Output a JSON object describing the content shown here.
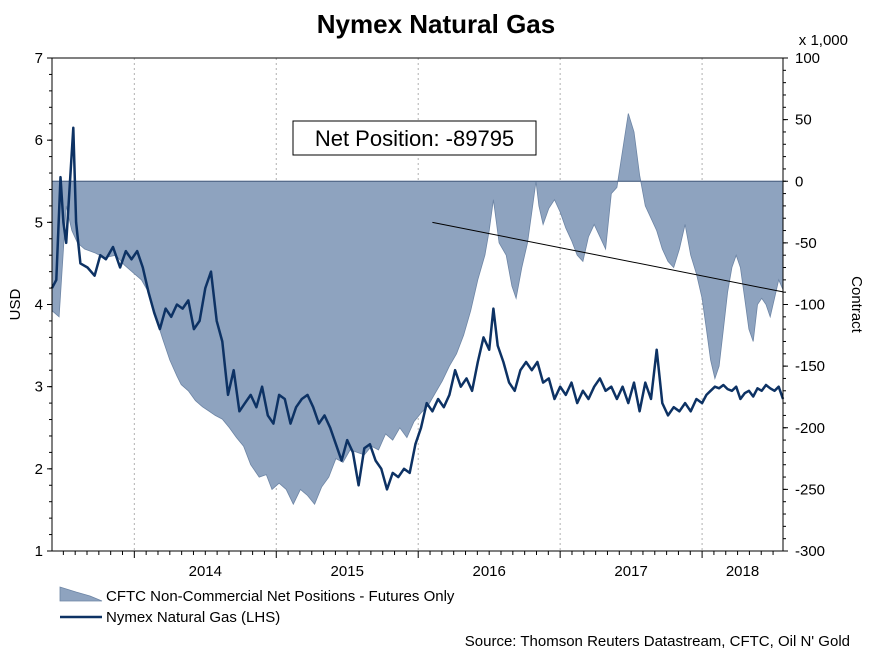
{
  "chart_data": {
    "type": "line+area",
    "title": "Nymex Natural Gas",
    "left_axis": {
      "label": "USD",
      "range": [
        1,
        7
      ],
      "ticks": [
        "1",
        "2",
        "3",
        "4",
        "5",
        "6",
        "7"
      ]
    },
    "right_axis": {
      "label": "Contract",
      "multiplier_label": "x 1,000",
      "range": [
        -300,
        100
      ],
      "ticks": [
        "100",
        "50",
        "0",
        "-50",
        "-100",
        "-150",
        "-200",
        "-250",
        "-300"
      ]
    },
    "x_axis": {
      "range": [
        2013.42,
        2018.57
      ],
      "tick_labels": [
        {
          "label": "2014",
          "year": 2014
        },
        {
          "label": "2015",
          "year": 2015
        },
        {
          "label": "2016",
          "year": 2016
        },
        {
          "label": "2017",
          "year": 2017
        },
        {
          "label": "2018",
          "year": 2018
        }
      ],
      "grid_years": [
        2014,
        2015,
        2016,
        2017,
        2018
      ]
    },
    "grid": true,
    "series": [
      {
        "name": "CFTC Non-Commercial Net Positions - Futures Only",
        "axis": "right",
        "kind": "area",
        "color": "#8EA3BF",
        "edge_color": "#6D85A5",
        "points": [
          [
            2013.42,
            -105
          ],
          [
            2013.47,
            -110
          ],
          [
            2013.52,
            -20
          ],
          [
            2013.56,
            -40
          ],
          [
            2013.6,
            -50
          ],
          [
            2013.65,
            -55
          ],
          [
            2013.72,
            -58
          ],
          [
            2013.79,
            -62
          ],
          [
            2013.87,
            -60
          ],
          [
            2013.93,
            -68
          ],
          [
            2014.0,
            -75
          ],
          [
            2014.05,
            -80
          ],
          [
            2014.1,
            -90
          ],
          [
            2014.15,
            -110
          ],
          [
            2014.2,
            -128
          ],
          [
            2014.25,
            -145
          ],
          [
            2014.3,
            -158
          ],
          [
            2014.33,
            -165
          ],
          [
            2014.38,
            -170
          ],
          [
            2014.43,
            -178
          ],
          [
            2014.48,
            -183
          ],
          [
            2014.52,
            -186
          ],
          [
            2014.57,
            -190
          ],
          [
            2014.62,
            -193
          ],
          [
            2014.67,
            -200
          ],
          [
            2014.72,
            -208
          ],
          [
            2014.77,
            -215
          ],
          [
            2014.82,
            -230
          ],
          [
            2014.88,
            -240
          ],
          [
            2014.93,
            -238
          ],
          [
            2014.97,
            -250
          ],
          [
            2015.02,
            -245
          ],
          [
            2015.07,
            -250
          ],
          [
            2015.12,
            -262
          ],
          [
            2015.17,
            -250
          ],
          [
            2015.22,
            -255
          ],
          [
            2015.27,
            -262
          ],
          [
            2015.32,
            -248
          ],
          [
            2015.37,
            -240
          ],
          [
            2015.42,
            -225
          ],
          [
            2015.47,
            -228
          ],
          [
            2015.52,
            -218
          ],
          [
            2015.57,
            -220
          ],
          [
            2015.62,
            -222
          ],
          [
            2015.67,
            -215
          ],
          [
            2015.72,
            -218
          ],
          [
            2015.77,
            -205
          ],
          [
            2015.82,
            -210
          ],
          [
            2015.87,
            -200
          ],
          [
            2015.92,
            -208
          ],
          [
            2015.97,
            -195
          ],
          [
            2016.02,
            -188
          ],
          [
            2016.07,
            -182
          ],
          [
            2016.12,
            -172
          ],
          [
            2016.17,
            -162
          ],
          [
            2016.22,
            -150
          ],
          [
            2016.27,
            -140
          ],
          [
            2016.32,
            -125
          ],
          [
            2016.37,
            -105
          ],
          [
            2016.42,
            -80
          ],
          [
            2016.47,
            -60
          ],
          [
            2016.5,
            -40
          ],
          [
            2016.53,
            -15
          ],
          [
            2016.57,
            -50
          ],
          [
            2016.62,
            -60
          ],
          [
            2016.66,
            -85
          ],
          [
            2016.69,
            -95
          ],
          [
            2016.73,
            -70
          ],
          [
            2016.77,
            -50
          ],
          [
            2016.8,
            -25
          ],
          [
            2016.83,
            0
          ],
          [
            2016.85,
            -20
          ],
          [
            2016.88,
            -35
          ],
          [
            2016.92,
            -22
          ],
          [
            2016.96,
            -15
          ],
          [
            2017.0,
            -25
          ],
          [
            2017.04,
            -38
          ],
          [
            2017.08,
            -48
          ],
          [
            2017.12,
            -60
          ],
          [
            2017.16,
            -65
          ],
          [
            2017.2,
            -45
          ],
          [
            2017.24,
            -35
          ],
          [
            2017.28,
            -45
          ],
          [
            2017.32,
            -55
          ],
          [
            2017.36,
            -10
          ],
          [
            2017.4,
            -5
          ],
          [
            2017.44,
            25
          ],
          [
            2017.48,
            55
          ],
          [
            2017.52,
            40
          ],
          [
            2017.56,
            5
          ],
          [
            2017.6,
            -20
          ],
          [
            2017.64,
            -30
          ],
          [
            2017.68,
            -40
          ],
          [
            2017.72,
            -55
          ],
          [
            2017.76,
            -65
          ],
          [
            2017.8,
            -70
          ],
          [
            2017.84,
            -55
          ],
          [
            2017.88,
            -35
          ],
          [
            2017.92,
            -60
          ],
          [
            2017.96,
            -75
          ],
          [
            2018.0,
            -95
          ],
          [
            2018.03,
            -120
          ],
          [
            2018.06,
            -145
          ],
          [
            2018.09,
            -160
          ],
          [
            2018.12,
            -150
          ],
          [
            2018.15,
            -120
          ],
          [
            2018.18,
            -90
          ],
          [
            2018.21,
            -70
          ],
          [
            2018.24,
            -60
          ],
          [
            2018.27,
            -70
          ],
          [
            2018.3,
            -95
          ],
          [
            2018.33,
            -120
          ],
          [
            2018.36,
            -130
          ],
          [
            2018.39,
            -100
          ],
          [
            2018.42,
            -95
          ],
          [
            2018.45,
            -100
          ],
          [
            2018.48,
            -110
          ],
          [
            2018.51,
            -95
          ],
          [
            2018.54,
            -80
          ],
          [
            2018.57,
            -88
          ]
        ]
      },
      {
        "name": "Nymex Natural Gas (LHS)",
        "axis": "left",
        "kind": "line",
        "color": "#0D3264",
        "points": [
          [
            2013.42,
            4.2
          ],
          [
            2013.45,
            4.3
          ],
          [
            2013.48,
            5.55
          ],
          [
            2013.5,
            5.0
          ],
          [
            2013.52,
            4.75
          ],
          [
            2013.54,
            5.3
          ],
          [
            2013.57,
            6.15
          ],
          [
            2013.59,
            5.0
          ],
          [
            2013.62,
            4.5
          ],
          [
            2013.67,
            4.45
          ],
          [
            2013.72,
            4.35
          ],
          [
            2013.76,
            4.6
          ],
          [
            2013.8,
            4.55
          ],
          [
            2013.85,
            4.7
          ],
          [
            2013.9,
            4.45
          ],
          [
            2013.94,
            4.65
          ],
          [
            2013.98,
            4.55
          ],
          [
            2014.02,
            4.65
          ],
          [
            2014.06,
            4.45
          ],
          [
            2014.1,
            4.15
          ],
          [
            2014.14,
            3.9
          ],
          [
            2014.18,
            3.7
          ],
          [
            2014.22,
            3.95
          ],
          [
            2014.26,
            3.85
          ],
          [
            2014.3,
            4.0
          ],
          [
            2014.34,
            3.95
          ],
          [
            2014.38,
            4.05
          ],
          [
            2014.42,
            3.7
          ],
          [
            2014.46,
            3.8
          ],
          [
            2014.5,
            4.2
          ],
          [
            2014.54,
            4.4
          ],
          [
            2014.58,
            3.8
          ],
          [
            2014.62,
            3.55
          ],
          [
            2014.66,
            2.9
          ],
          [
            2014.7,
            3.2
          ],
          [
            2014.74,
            2.7
          ],
          [
            2014.78,
            2.8
          ],
          [
            2014.82,
            2.9
          ],
          [
            2014.86,
            2.75
          ],
          [
            2014.9,
            3.0
          ],
          [
            2014.94,
            2.65
          ],
          [
            2014.98,
            2.55
          ],
          [
            2015.02,
            2.9
          ],
          [
            2015.06,
            2.85
          ],
          [
            2015.1,
            2.55
          ],
          [
            2015.14,
            2.75
          ],
          [
            2015.18,
            2.85
          ],
          [
            2015.22,
            2.9
          ],
          [
            2015.26,
            2.75
          ],
          [
            2015.3,
            2.55
          ],
          [
            2015.34,
            2.65
          ],
          [
            2015.38,
            2.5
          ],
          [
            2015.42,
            2.3
          ],
          [
            2015.46,
            2.1
          ],
          [
            2015.5,
            2.35
          ],
          [
            2015.54,
            2.2
          ],
          [
            2015.58,
            1.8
          ],
          [
            2015.62,
            2.25
          ],
          [
            2015.66,
            2.3
          ],
          [
            2015.7,
            2.1
          ],
          [
            2015.74,
            2.0
          ],
          [
            2015.78,
            1.75
          ],
          [
            2015.82,
            1.95
          ],
          [
            2015.86,
            1.9
          ],
          [
            2015.9,
            2.0
          ],
          [
            2015.94,
            1.95
          ],
          [
            2015.98,
            2.3
          ],
          [
            2016.02,
            2.5
          ],
          [
            2016.06,
            2.8
          ],
          [
            2016.1,
            2.7
          ],
          [
            2016.14,
            2.85
          ],
          [
            2016.18,
            2.75
          ],
          [
            2016.22,
            2.9
          ],
          [
            2016.26,
            3.2
          ],
          [
            2016.3,
            3.0
          ],
          [
            2016.34,
            3.1
          ],
          [
            2016.38,
            2.95
          ],
          [
            2016.42,
            3.3
          ],
          [
            2016.46,
            3.6
          ],
          [
            2016.5,
            3.45
          ],
          [
            2016.53,
            3.95
          ],
          [
            2016.56,
            3.5
          ],
          [
            2016.6,
            3.3
          ],
          [
            2016.64,
            3.05
          ],
          [
            2016.68,
            2.95
          ],
          [
            2016.72,
            3.2
          ],
          [
            2016.76,
            3.3
          ],
          [
            2016.8,
            3.2
          ],
          [
            2016.84,
            3.3
          ],
          [
            2016.88,
            3.05
          ],
          [
            2016.92,
            3.1
          ],
          [
            2016.96,
            2.85
          ],
          [
            2017.0,
            3.0
          ],
          [
            2017.04,
            2.9
          ],
          [
            2017.08,
            3.05
          ],
          [
            2017.12,
            2.8
          ],
          [
            2017.16,
            2.95
          ],
          [
            2017.2,
            2.85
          ],
          [
            2017.24,
            3.0
          ],
          [
            2017.28,
            3.1
          ],
          [
            2017.32,
            2.95
          ],
          [
            2017.36,
            3.0
          ],
          [
            2017.4,
            2.85
          ],
          [
            2017.44,
            3.0
          ],
          [
            2017.48,
            2.8
          ],
          [
            2017.52,
            3.05
          ],
          [
            2017.56,
            2.7
          ],
          [
            2017.6,
            3.05
          ],
          [
            2017.64,
            2.85
          ],
          [
            2017.68,
            3.45
          ],
          [
            2017.72,
            2.8
          ],
          [
            2017.76,
            2.65
          ],
          [
            2017.8,
            2.75
          ],
          [
            2017.84,
            2.7
          ],
          [
            2017.88,
            2.8
          ],
          [
            2017.92,
            2.7
          ],
          [
            2017.96,
            2.85
          ],
          [
            2018.0,
            2.8
          ],
          [
            2018.03,
            2.9
          ],
          [
            2018.06,
            2.95
          ],
          [
            2018.09,
            3.0
          ],
          [
            2018.12,
            2.98
          ],
          [
            2018.15,
            3.02
          ],
          [
            2018.18,
            2.97
          ],
          [
            2018.21,
            2.95
          ],
          [
            2018.24,
            3.0
          ],
          [
            2018.27,
            2.85
          ],
          [
            2018.3,
            2.92
          ],
          [
            2018.33,
            2.95
          ],
          [
            2018.36,
            2.88
          ],
          [
            2018.39,
            2.98
          ],
          [
            2018.42,
            2.95
          ],
          [
            2018.45,
            3.02
          ],
          [
            2018.48,
            2.98
          ],
          [
            2018.51,
            2.95
          ],
          [
            2018.54,
            3.0
          ],
          [
            2018.57,
            2.85
          ]
        ]
      }
    ],
    "annotation": {
      "text": "Net Position: -89795",
      "points_to": [
        2018.57,
        -89.795
      ],
      "line_from": [
        2016.1,
        5
      ]
    },
    "legend": {
      "placement": "bottom-left",
      "items": [
        "CFTC Non-Commercial Net Positions - Futures Only",
        "Nymex Natural Gas (LHS)"
      ]
    },
    "source": "Source: Thomson Reuters Datastream, CFTC, Oil N' Gold"
  }
}
